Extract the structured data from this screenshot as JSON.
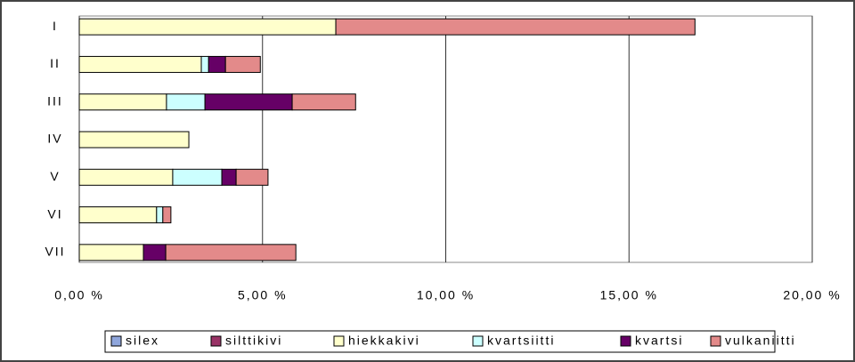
{
  "chart_data": {
    "type": "stacked-barh",
    "categories": [
      "I",
      "II",
      "III",
      "IV",
      "V",
      "VI",
      "VII"
    ],
    "series": [
      {
        "name": "silex",
        "color": "#8fa6dc",
        "values": [
          0,
          0,
          0,
          0,
          0,
          0,
          0
        ]
      },
      {
        "name": "silttikivi",
        "color": "#993366",
        "values": [
          0,
          0,
          0,
          0,
          0,
          0,
          0
        ]
      },
      {
        "name": "hiekkakivi",
        "color": "#ffffcc",
        "values": [
          7.0,
          3.33,
          2.38,
          2.99,
          2.55,
          2.11,
          1.75
        ]
      },
      {
        "name": "kvartsiitti",
        "color": "#ccffff",
        "values": [
          0,
          0.2,
          1.05,
          0,
          1.34,
          0.17,
          0
        ]
      },
      {
        "name": "kvartsi",
        "color": "#660066",
        "values": [
          0,
          0.46,
          2.38,
          0,
          0.39,
          0,
          0.61
        ]
      },
      {
        "name": "vulkaniitti",
        "color": "#e38a8a",
        "values": [
          9.8,
          0.95,
          1.73,
          0,
          0.87,
          0.22,
          3.55
        ]
      }
    ],
    "xlim": [
      0,
      20
    ],
    "xticks": [
      {
        "value": 0,
        "label": "0,00 %"
      },
      {
        "value": 5,
        "label": "5,00 %"
      },
      {
        "value": 10,
        "label": "10,00 %"
      },
      {
        "value": 15,
        "label": "15,00 %"
      },
      {
        "value": 20,
        "label": "20,00 %"
      }
    ],
    "grid": true,
    "legend": "bottom"
  }
}
